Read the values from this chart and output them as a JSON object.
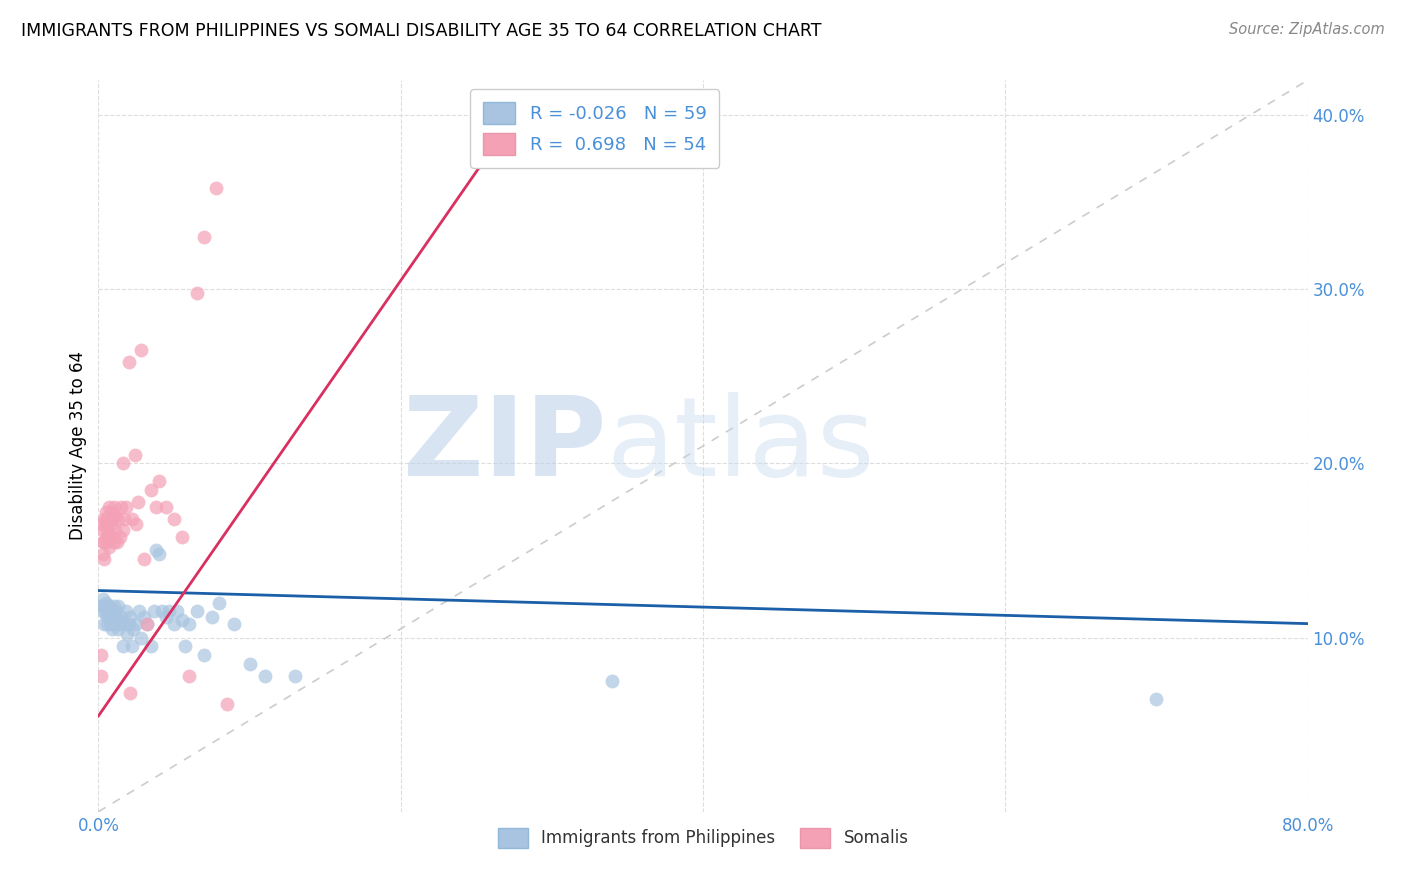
{
  "title": "IMMIGRANTS FROM PHILIPPINES VS SOMALI DISABILITY AGE 35 TO 64 CORRELATION CHART",
  "source": "Source: ZipAtlas.com",
  "ylabel_label": "Disability Age 35 to 64",
  "xlim": [
    0.0,
    0.8
  ],
  "ylim": [
    0.0,
    0.42
  ],
  "R_blue": -0.026,
  "N_blue": 59,
  "R_pink": 0.698,
  "N_pink": 54,
  "legend_label_blue": "Immigrants from Philippines",
  "legend_label_pink": "Somalis",
  "watermark_zip": "ZIP",
  "watermark_atlas": "atlas",
  "blue_color": "#a8c4e0",
  "pink_color": "#f4a0b5",
  "blue_line_color": "#1a5fa8",
  "pink_line_color": "#d93060",
  "blue_line": [
    [
      0.0,
      0.127
    ],
    [
      0.8,
      0.108
    ]
  ],
  "pink_line": [
    [
      0.0,
      0.055
    ],
    [
      0.28,
      0.405
    ]
  ],
  "blue_scatter": [
    [
      0.002,
      0.118
    ],
    [
      0.003,
      0.115
    ],
    [
      0.003,
      0.122
    ],
    [
      0.004,
      0.108
    ],
    [
      0.004,
      0.118
    ],
    [
      0.005,
      0.113
    ],
    [
      0.005,
      0.12
    ],
    [
      0.006,
      0.108
    ],
    [
      0.006,
      0.115
    ],
    [
      0.007,
      0.112
    ],
    [
      0.007,
      0.118
    ],
    [
      0.008,
      0.108
    ],
    [
      0.008,
      0.115
    ],
    [
      0.009,
      0.11
    ],
    [
      0.009,
      0.105
    ],
    [
      0.01,
      0.118
    ],
    [
      0.01,
      0.112
    ],
    [
      0.011,
      0.108
    ],
    [
      0.011,
      0.115
    ],
    [
      0.012,
      0.11
    ],
    [
      0.013,
      0.105
    ],
    [
      0.013,
      0.118
    ],
    [
      0.014,
      0.108
    ],
    [
      0.015,
      0.112
    ],
    [
      0.016,
      0.095
    ],
    [
      0.017,
      0.108
    ],
    [
      0.018,
      0.115
    ],
    [
      0.019,
      0.102
    ],
    [
      0.02,
      0.108
    ],
    [
      0.021,
      0.112
    ],
    [
      0.022,
      0.095
    ],
    [
      0.023,
      0.105
    ],
    [
      0.025,
      0.108
    ],
    [
      0.027,
      0.115
    ],
    [
      0.028,
      0.1
    ],
    [
      0.03,
      0.112
    ],
    [
      0.032,
      0.108
    ],
    [
      0.035,
      0.095
    ],
    [
      0.037,
      0.115
    ],
    [
      0.038,
      0.15
    ],
    [
      0.04,
      0.148
    ],
    [
      0.042,
      0.115
    ],
    [
      0.045,
      0.112
    ],
    [
      0.047,
      0.115
    ],
    [
      0.05,
      0.108
    ],
    [
      0.052,
      0.115
    ],
    [
      0.055,
      0.11
    ],
    [
      0.057,
      0.095
    ],
    [
      0.06,
      0.108
    ],
    [
      0.065,
      0.115
    ],
    [
      0.07,
      0.09
    ],
    [
      0.075,
      0.112
    ],
    [
      0.08,
      0.12
    ],
    [
      0.09,
      0.108
    ],
    [
      0.1,
      0.085
    ],
    [
      0.11,
      0.078
    ],
    [
      0.13,
      0.078
    ],
    [
      0.34,
      0.075
    ],
    [
      0.7,
      0.065
    ]
  ],
  "pink_scatter": [
    [
      0.001,
      0.165
    ],
    [
      0.002,
      0.09
    ],
    [
      0.002,
      0.078
    ],
    [
      0.003,
      0.155
    ],
    [
      0.003,
      0.148
    ],
    [
      0.003,
      0.162
    ],
    [
      0.004,
      0.168
    ],
    [
      0.004,
      0.155
    ],
    [
      0.004,
      0.145
    ],
    [
      0.005,
      0.172
    ],
    [
      0.005,
      0.158
    ],
    [
      0.005,
      0.165
    ],
    [
      0.006,
      0.168
    ],
    [
      0.006,
      0.155
    ],
    [
      0.006,
      0.162
    ],
    [
      0.007,
      0.175
    ],
    [
      0.007,
      0.16
    ],
    [
      0.007,
      0.152
    ],
    [
      0.008,
      0.165
    ],
    [
      0.008,
      0.158
    ],
    [
      0.009,
      0.172
    ],
    [
      0.009,
      0.168
    ],
    [
      0.01,
      0.155
    ],
    [
      0.01,
      0.175
    ],
    [
      0.011,
      0.162
    ],
    [
      0.011,
      0.17
    ],
    [
      0.012,
      0.155
    ],
    [
      0.013,
      0.168
    ],
    [
      0.014,
      0.158
    ],
    [
      0.015,
      0.175
    ],
    [
      0.016,
      0.162
    ],
    [
      0.016,
      0.2
    ],
    [
      0.017,
      0.168
    ],
    [
      0.018,
      0.175
    ],
    [
      0.02,
      0.258
    ],
    [
      0.021,
      0.068
    ],
    [
      0.022,
      0.168
    ],
    [
      0.024,
      0.205
    ],
    [
      0.025,
      0.165
    ],
    [
      0.026,
      0.178
    ],
    [
      0.028,
      0.265
    ],
    [
      0.03,
      0.145
    ],
    [
      0.032,
      0.108
    ],
    [
      0.035,
      0.185
    ],
    [
      0.038,
      0.175
    ],
    [
      0.04,
      0.19
    ],
    [
      0.045,
      0.175
    ],
    [
      0.05,
      0.168
    ],
    [
      0.055,
      0.158
    ],
    [
      0.06,
      0.078
    ],
    [
      0.065,
      0.298
    ],
    [
      0.07,
      0.33
    ],
    [
      0.078,
      0.358
    ],
    [
      0.085,
      0.062
    ]
  ]
}
